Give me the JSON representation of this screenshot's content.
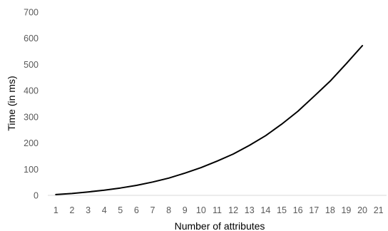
{
  "chart_data": {
    "type": "line",
    "xlabel": "Number of attributes",
    "ylabel": "Time (in ms)",
    "xlim": [
      1,
      21
    ],
    "ylim": [
      0,
      700
    ],
    "x_ticks": [
      1,
      2,
      3,
      4,
      5,
      6,
      7,
      8,
      9,
      10,
      11,
      12,
      13,
      14,
      15,
      16,
      17,
      18,
      19,
      20,
      21
    ],
    "y_ticks": [
      0,
      100,
      200,
      300,
      400,
      500,
      600,
      700
    ],
    "grid": false,
    "legend": "none",
    "series": [
      {
        "color": "#000000",
        "x": [
          1,
          2,
          3,
          4,
          5,
          6,
          7,
          8,
          9,
          10,
          11,
          12,
          13,
          14,
          15,
          16,
          17,
          18,
          19,
          20
        ],
        "y": [
          3,
          7,
          13,
          20,
          28,
          38,
          51,
          66,
          85,
          106,
          131,
          158,
          191,
          228,
          272,
          321,
          378,
          436,
          503,
          572
        ]
      }
    ]
  }
}
